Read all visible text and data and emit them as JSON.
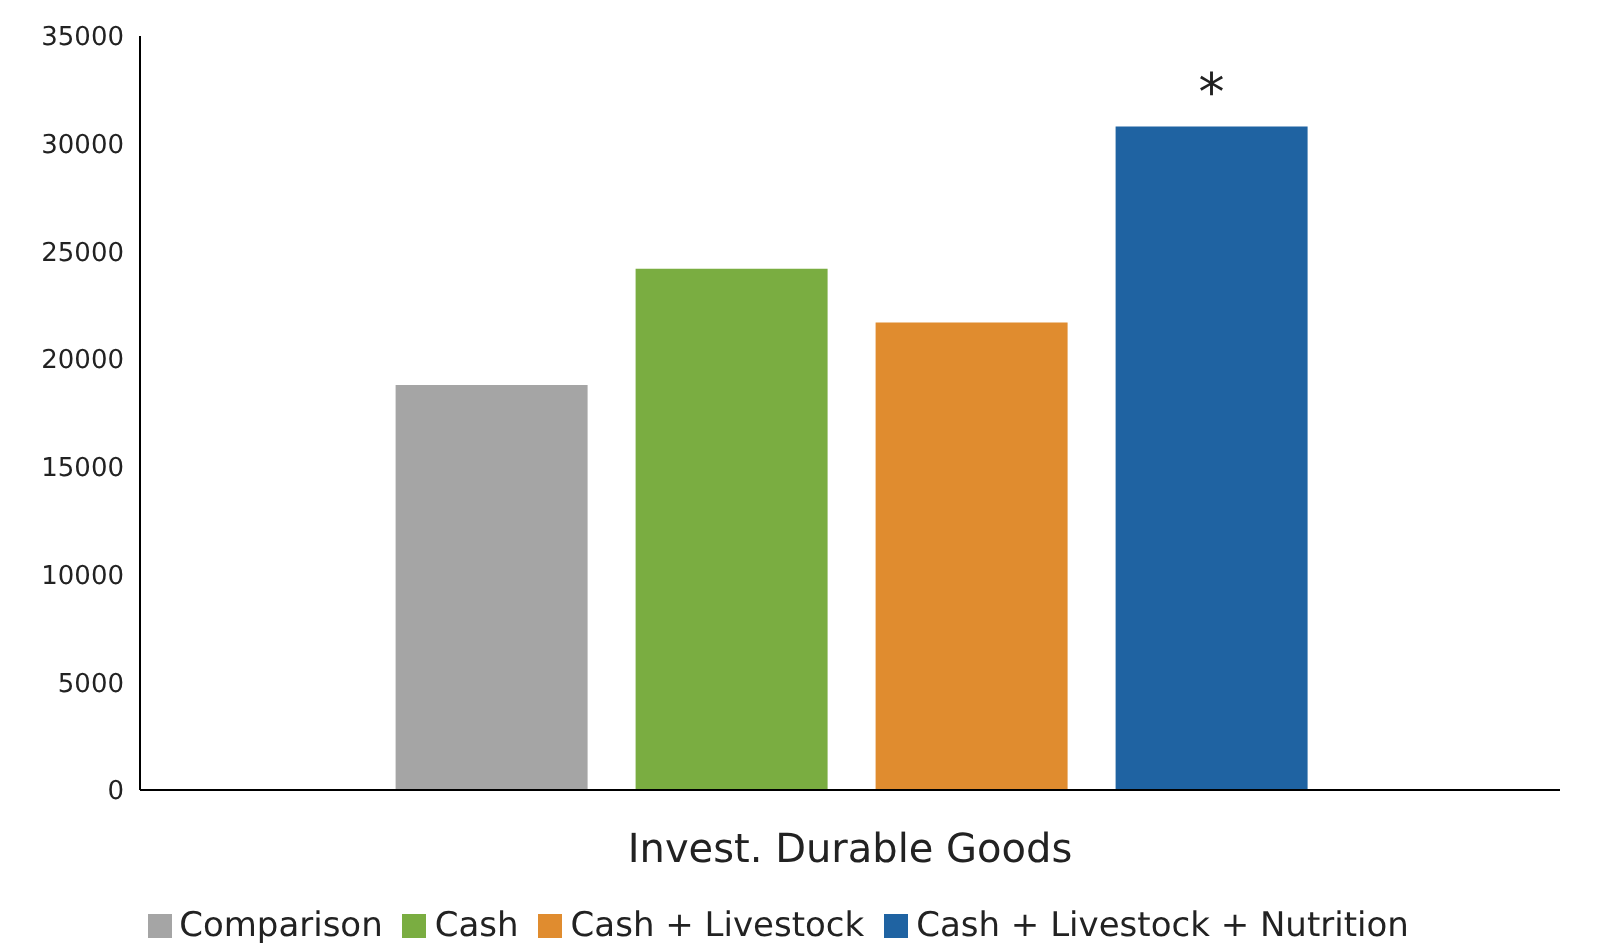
{
  "chart_data": {
    "type": "bar",
    "categories": [
      "Invest. Durable Goods"
    ],
    "series": [
      {
        "name": "Comparison",
        "color": "#a5a5a5",
        "values": [
          18800
        ]
      },
      {
        "name": "Cash",
        "color": "#7aad41",
        "values": [
          24200
        ]
      },
      {
        "name": "Cash + Livestock",
        "color": "#e08c2f",
        "values": [
          21700
        ]
      },
      {
        "name": "Cash + Livestock + Nutrition",
        "color": "#1f63a2",
        "values": [
          30800
        ]
      }
    ],
    "ylim": [
      0,
      35000
    ],
    "yticks": [
      0,
      5000,
      10000,
      15000,
      20000,
      25000,
      30000,
      35000
    ],
    "annotations": [
      "*"
    ],
    "grid": false,
    "legend": "bottom"
  }
}
